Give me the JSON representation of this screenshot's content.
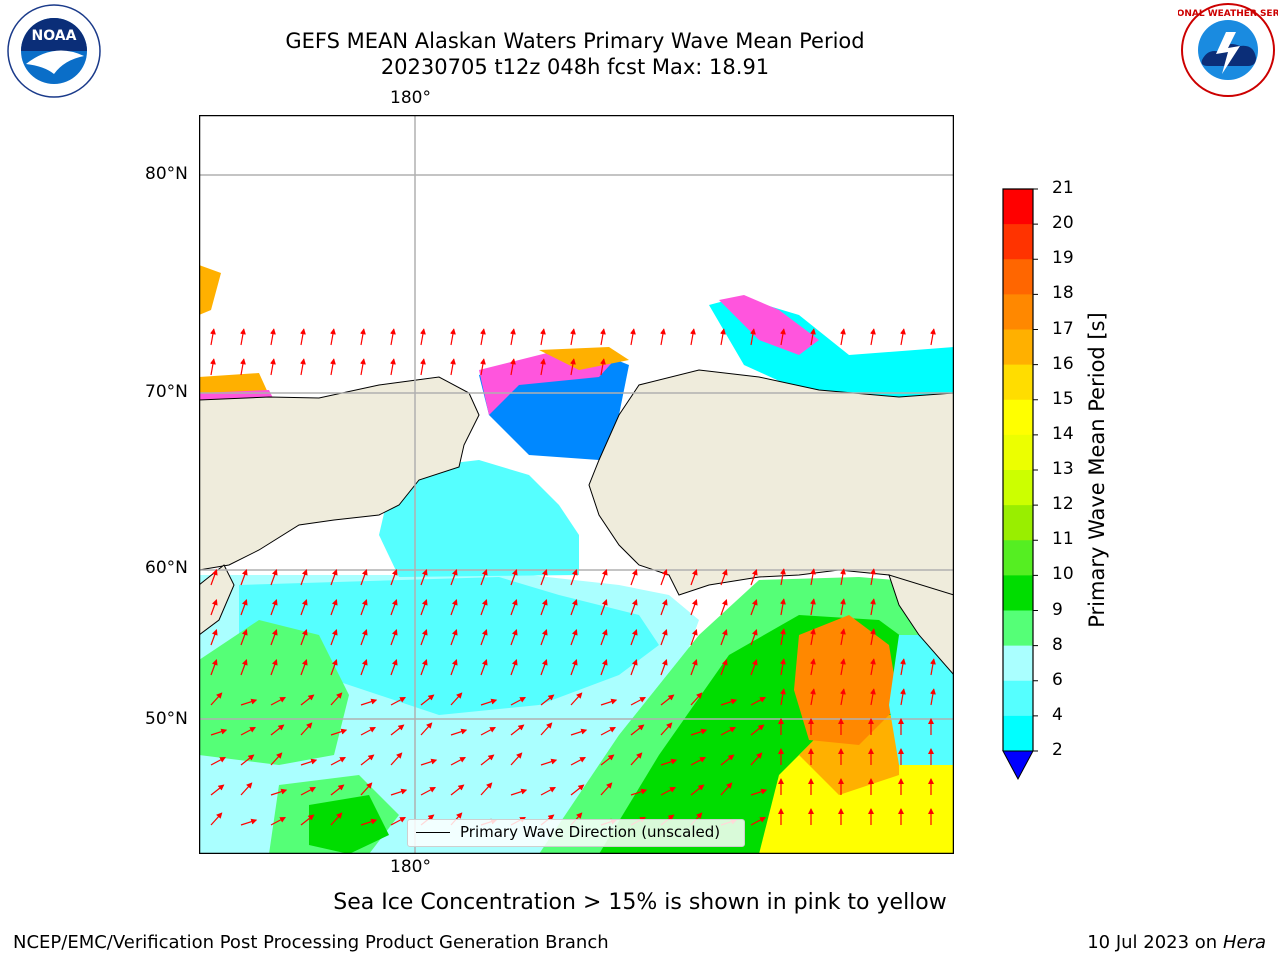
{
  "title": {
    "line1": "GEFS MEAN Alaskan Waters Primary Wave Mean Period",
    "line2": "20230705 t12z 048h fcst   Max: 18.91"
  },
  "logos": {
    "noaa_text": "NOAA",
    "nws_text": "NATIONAL WEATHER SERVICE"
  },
  "map": {
    "lon_labels": [
      "180°",
      "180°"
    ],
    "lat_labels": [
      "80°N",
      "70°N",
      "60°N",
      "50°N"
    ],
    "colors": {
      "land": "#efecdc",
      "grid": "#b0b0b0",
      "arrow": "#ff0000",
      "coast": "#000000"
    }
  },
  "legend": {
    "label": "Primary Wave Direction (unscaled)"
  },
  "colorbar": {
    "label": "Primary Wave Mean Period [s]",
    "ticks": [
      "21",
      "20",
      "19",
      "18",
      "17",
      "16",
      "15",
      "14",
      "13",
      "12",
      "11",
      "10",
      "9",
      "8",
      "6",
      "4",
      "2"
    ],
    "colors": [
      "#ff0000",
      "#ff3300",
      "#ff6600",
      "#ff8800",
      "#ffb000",
      "#ffdd00",
      "#ffff00",
      "#ecff00",
      "#ccff00",
      "#99ee00",
      "#55ee22",
      "#00dd00",
      "#55ff77",
      "#aaffff",
      "#55ffff",
      "#00ffff",
      "#0088ff"
    ],
    "under_color": "#0000ff"
  },
  "caption": "Sea Ice Concentration > 15% is shown in pink to yellow",
  "footer": {
    "left": "NCEP/EMC/Verification Post Processing Product Generation Branch",
    "right_prefix": "10 Jul 2023 on ",
    "right_italic": "Hera"
  }
}
